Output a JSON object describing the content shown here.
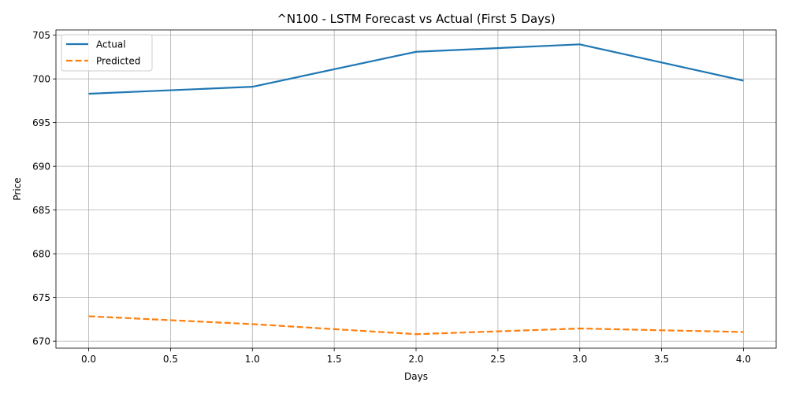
{
  "chart_data": {
    "type": "line",
    "title": "^N100 - LSTM Forecast vs Actual (First 5 Days)",
    "xlabel": "Days",
    "ylabel": "Price",
    "xlim": [
      -0.2,
      4.2
    ],
    "ylim": [
      669.2,
      705.6
    ],
    "xticks": [
      0.0,
      0.5,
      1.0,
      1.5,
      2.0,
      2.5,
      3.0,
      3.5,
      4.0
    ],
    "xtick_labels": [
      "0.0",
      "0.5",
      "1.0",
      "1.5",
      "2.0",
      "2.5",
      "3.0",
      "3.5",
      "4.0"
    ],
    "yticks": [
      670,
      675,
      680,
      685,
      690,
      695,
      700,
      705
    ],
    "ytick_labels": [
      "670",
      "675",
      "680",
      "685",
      "690",
      "695",
      "700",
      "705"
    ],
    "grid": true,
    "legend_position": "top-left",
    "x": [
      0,
      1,
      2,
      3,
      4
    ],
    "series": [
      {
        "name": "Actual",
        "values": [
          698.3,
          699.1,
          703.1,
          703.95,
          699.8
        ],
        "color": "#1f77b4",
        "style": "solid"
      },
      {
        "name": "Predicted",
        "values": [
          672.85,
          671.95,
          670.8,
          671.45,
          671.05
        ],
        "color": "#ff7f0e",
        "style": "dashed"
      }
    ]
  }
}
